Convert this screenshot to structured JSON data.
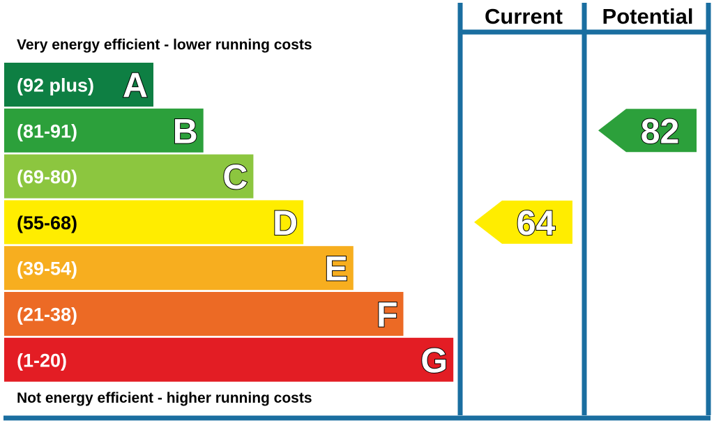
{
  "chart_data": {
    "type": "bar",
    "title": "",
    "column_headers": {
      "current": "Current",
      "potential": "Potential"
    },
    "top_caption": "Very energy efficient - lower running costs",
    "bottom_caption": "Not energy efficient - higher running costs",
    "bands": [
      {
        "letter": "A",
        "range": "(92 plus)",
        "min": 92,
        "max": 100,
        "color": "#0e7f43"
      },
      {
        "letter": "B",
        "range": "(81-91)",
        "min": 81,
        "max": 91,
        "color": "#2ca03b"
      },
      {
        "letter": "C",
        "range": "(69-80)",
        "min": 69,
        "max": 80,
        "color": "#8cc63f"
      },
      {
        "letter": "D",
        "range": "(55-68)",
        "min": 55,
        "max": 68,
        "color": "#ffed00"
      },
      {
        "letter": "E",
        "range": "(39-54)",
        "min": 39,
        "max": 54,
        "color": "#f7ae1f"
      },
      {
        "letter": "F",
        "range": "(21-38)",
        "min": 21,
        "max": 38,
        "color": "#ec6a25"
      },
      {
        "letter": "G",
        "range": "(1-20)",
        "min": 1,
        "max": 20,
        "color": "#e31d24"
      }
    ],
    "current": {
      "value": 64,
      "band": "D",
      "color": "#ffed00"
    },
    "potential": {
      "value": 82,
      "band": "B",
      "color": "#2ca03b"
    },
    "frame_color": "#1a6ea0"
  }
}
